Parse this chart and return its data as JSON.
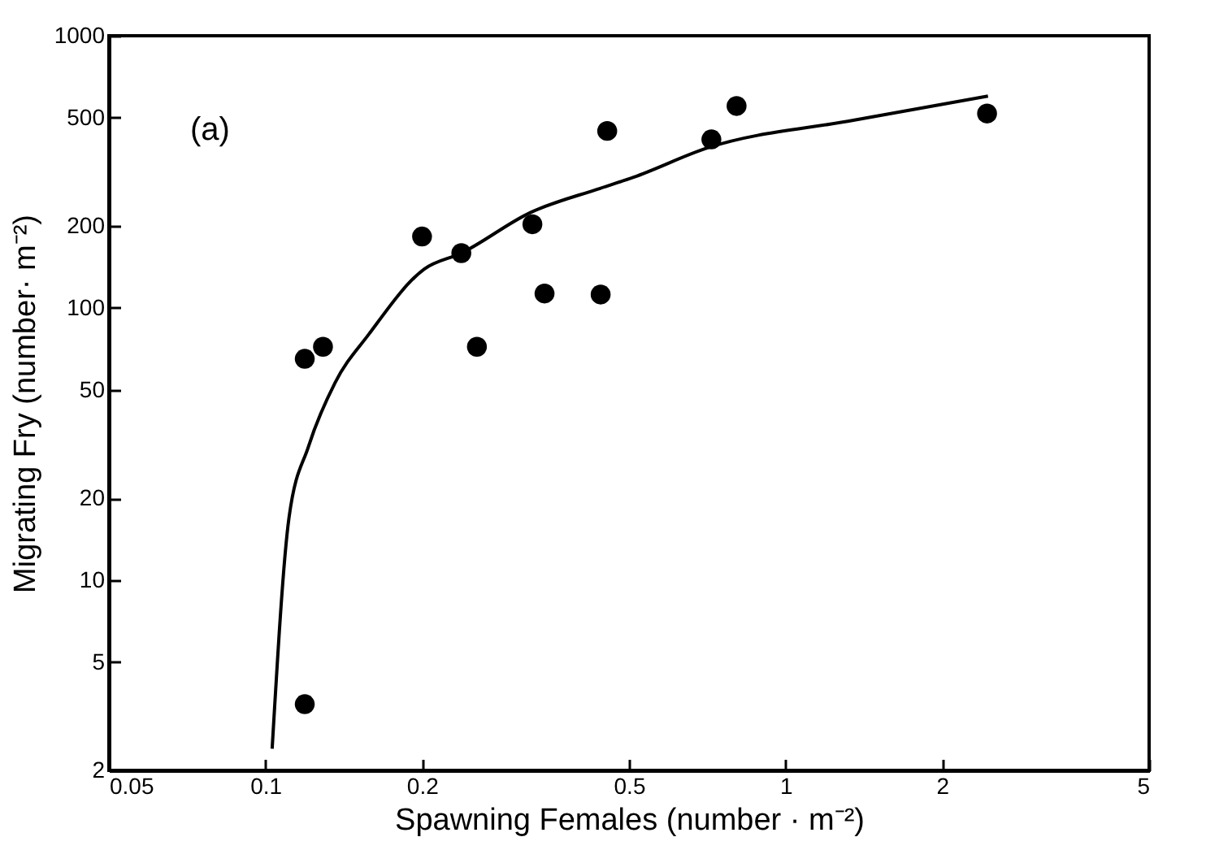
{
  "chart_data": {
    "type": "scatter",
    "xlabel": "Spawning Females (number · m⁻²)",
    "ylabel": "Migrating Fry (number· m⁻²)",
    "annotations": [
      "(a)"
    ],
    "log": "xy",
    "grid": false,
    "marker": "circle",
    "xlim": [
      0.05,
      5
    ],
    "xticks": [
      0.05,
      0.1,
      0.2,
      0.5,
      1,
      2,
      5
    ],
    "ylim": [
      2,
      1000
    ],
    "yticks": [
      2,
      5,
      10,
      20,
      50,
      100,
      200,
      500,
      1000
    ],
    "series": [
      {
        "color": "#000000",
        "x": [
          0.119,
          0.129,
          0.119,
          0.2,
          0.238,
          0.255,
          0.326,
          0.344,
          0.441,
          0.454,
          0.72,
          0.805,
          2.44
        ],
        "values": [
          65,
          72,
          3.5,
          183,
          159,
          72,
          203,
          113,
          112,
          447,
          416,
          552,
          518
        ]
      },
      {
        "type": "line",
        "color": "#000000",
        "marker": "none",
        "x": [
          0.103,
          0.111,
          0.121,
          0.136,
          0.158,
          0.202,
          0.238,
          0.323,
          0.44,
          0.51,
          0.71,
          1.35,
          2.45
        ],
        "values": [
          2.4,
          17,
          31,
          53,
          80,
          139,
          159,
          224,
          275,
          302,
          388,
          489,
          600
        ]
      }
    ]
  }
}
